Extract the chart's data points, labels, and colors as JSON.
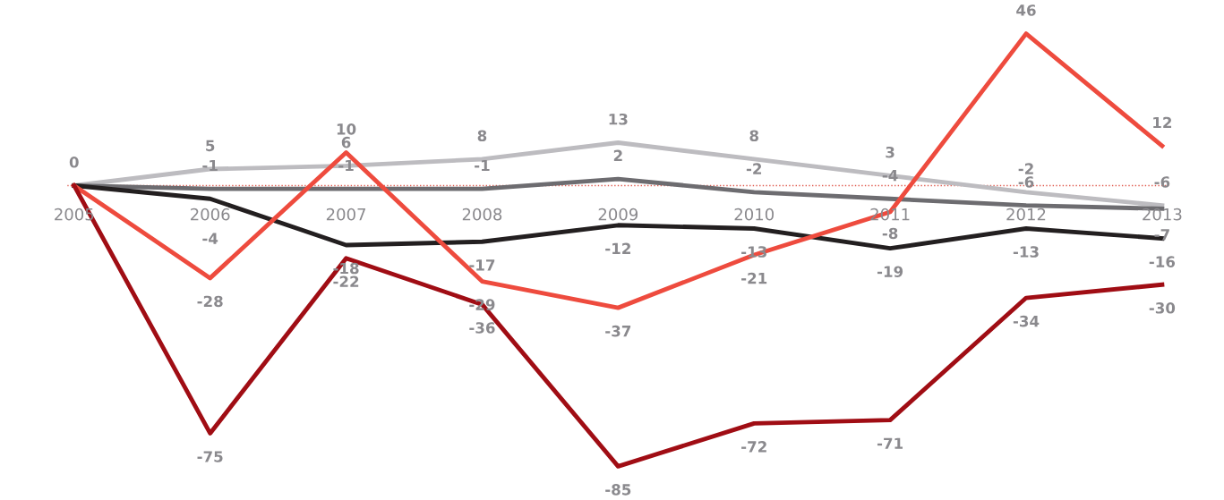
{
  "chart_data": {
    "type": "line",
    "categories": [
      "2005",
      "2006",
      "2007",
      "2008",
      "2009",
      "2010",
      "2011",
      "2012",
      "2013"
    ],
    "series": [
      {
        "color": "#bdbcc0",
        "values": [
          0,
          5,
          6,
          8,
          13,
          8,
          3,
          -2,
          -6
        ],
        "value_labels": [
          "0",
          "5",
          "6",
          "8",
          "13",
          "8",
          "3",
          "-2",
          "-6"
        ]
      },
      {
        "color": "#6d6c70",
        "values": [
          0,
          -1,
          -1,
          -1,
          2,
          -2,
          -4,
          -6,
          -7
        ],
        "value_labels": [
          null,
          "-1",
          "-1",
          "-1",
          "2",
          "-2",
          "-4",
          "-6",
          "-7"
        ]
      },
      {
        "color": "#231f20",
        "values": [
          0,
          -4,
          -18,
          -17,
          -12,
          -13,
          -19,
          -13,
          -16
        ],
        "value_labels": [
          null,
          "-4",
          "-18",
          "-17",
          "-12",
          "-13",
          "-19",
          "-13",
          "-16"
        ]
      },
      {
        "color": "#ee4b3e",
        "values": [
          0,
          -28,
          10,
          -29,
          -37,
          -21,
          -8,
          46,
          12
        ],
        "value_labels": [
          null,
          "-28",
          "10",
          "-29",
          "-37",
          "-21",
          "-8",
          "46",
          "12"
        ]
      },
      {
        "color": "#a00d14",
        "values": [
          0,
          -75,
          -22,
          -36,
          -85,
          -72,
          -71,
          -34,
          -30
        ],
        "value_labels": [
          null,
          "-75",
          "-22",
          "-36",
          "-85",
          "-72",
          "-71",
          "-34",
          "-30"
        ]
      }
    ],
    "ref_lines": [
      {
        "axis": "y",
        "value": 0,
        "color": "#e05a4e",
        "line_style": "dotted"
      }
    ],
    "legend": false,
    "marker": "none",
    "line_style": "solid"
  }
}
